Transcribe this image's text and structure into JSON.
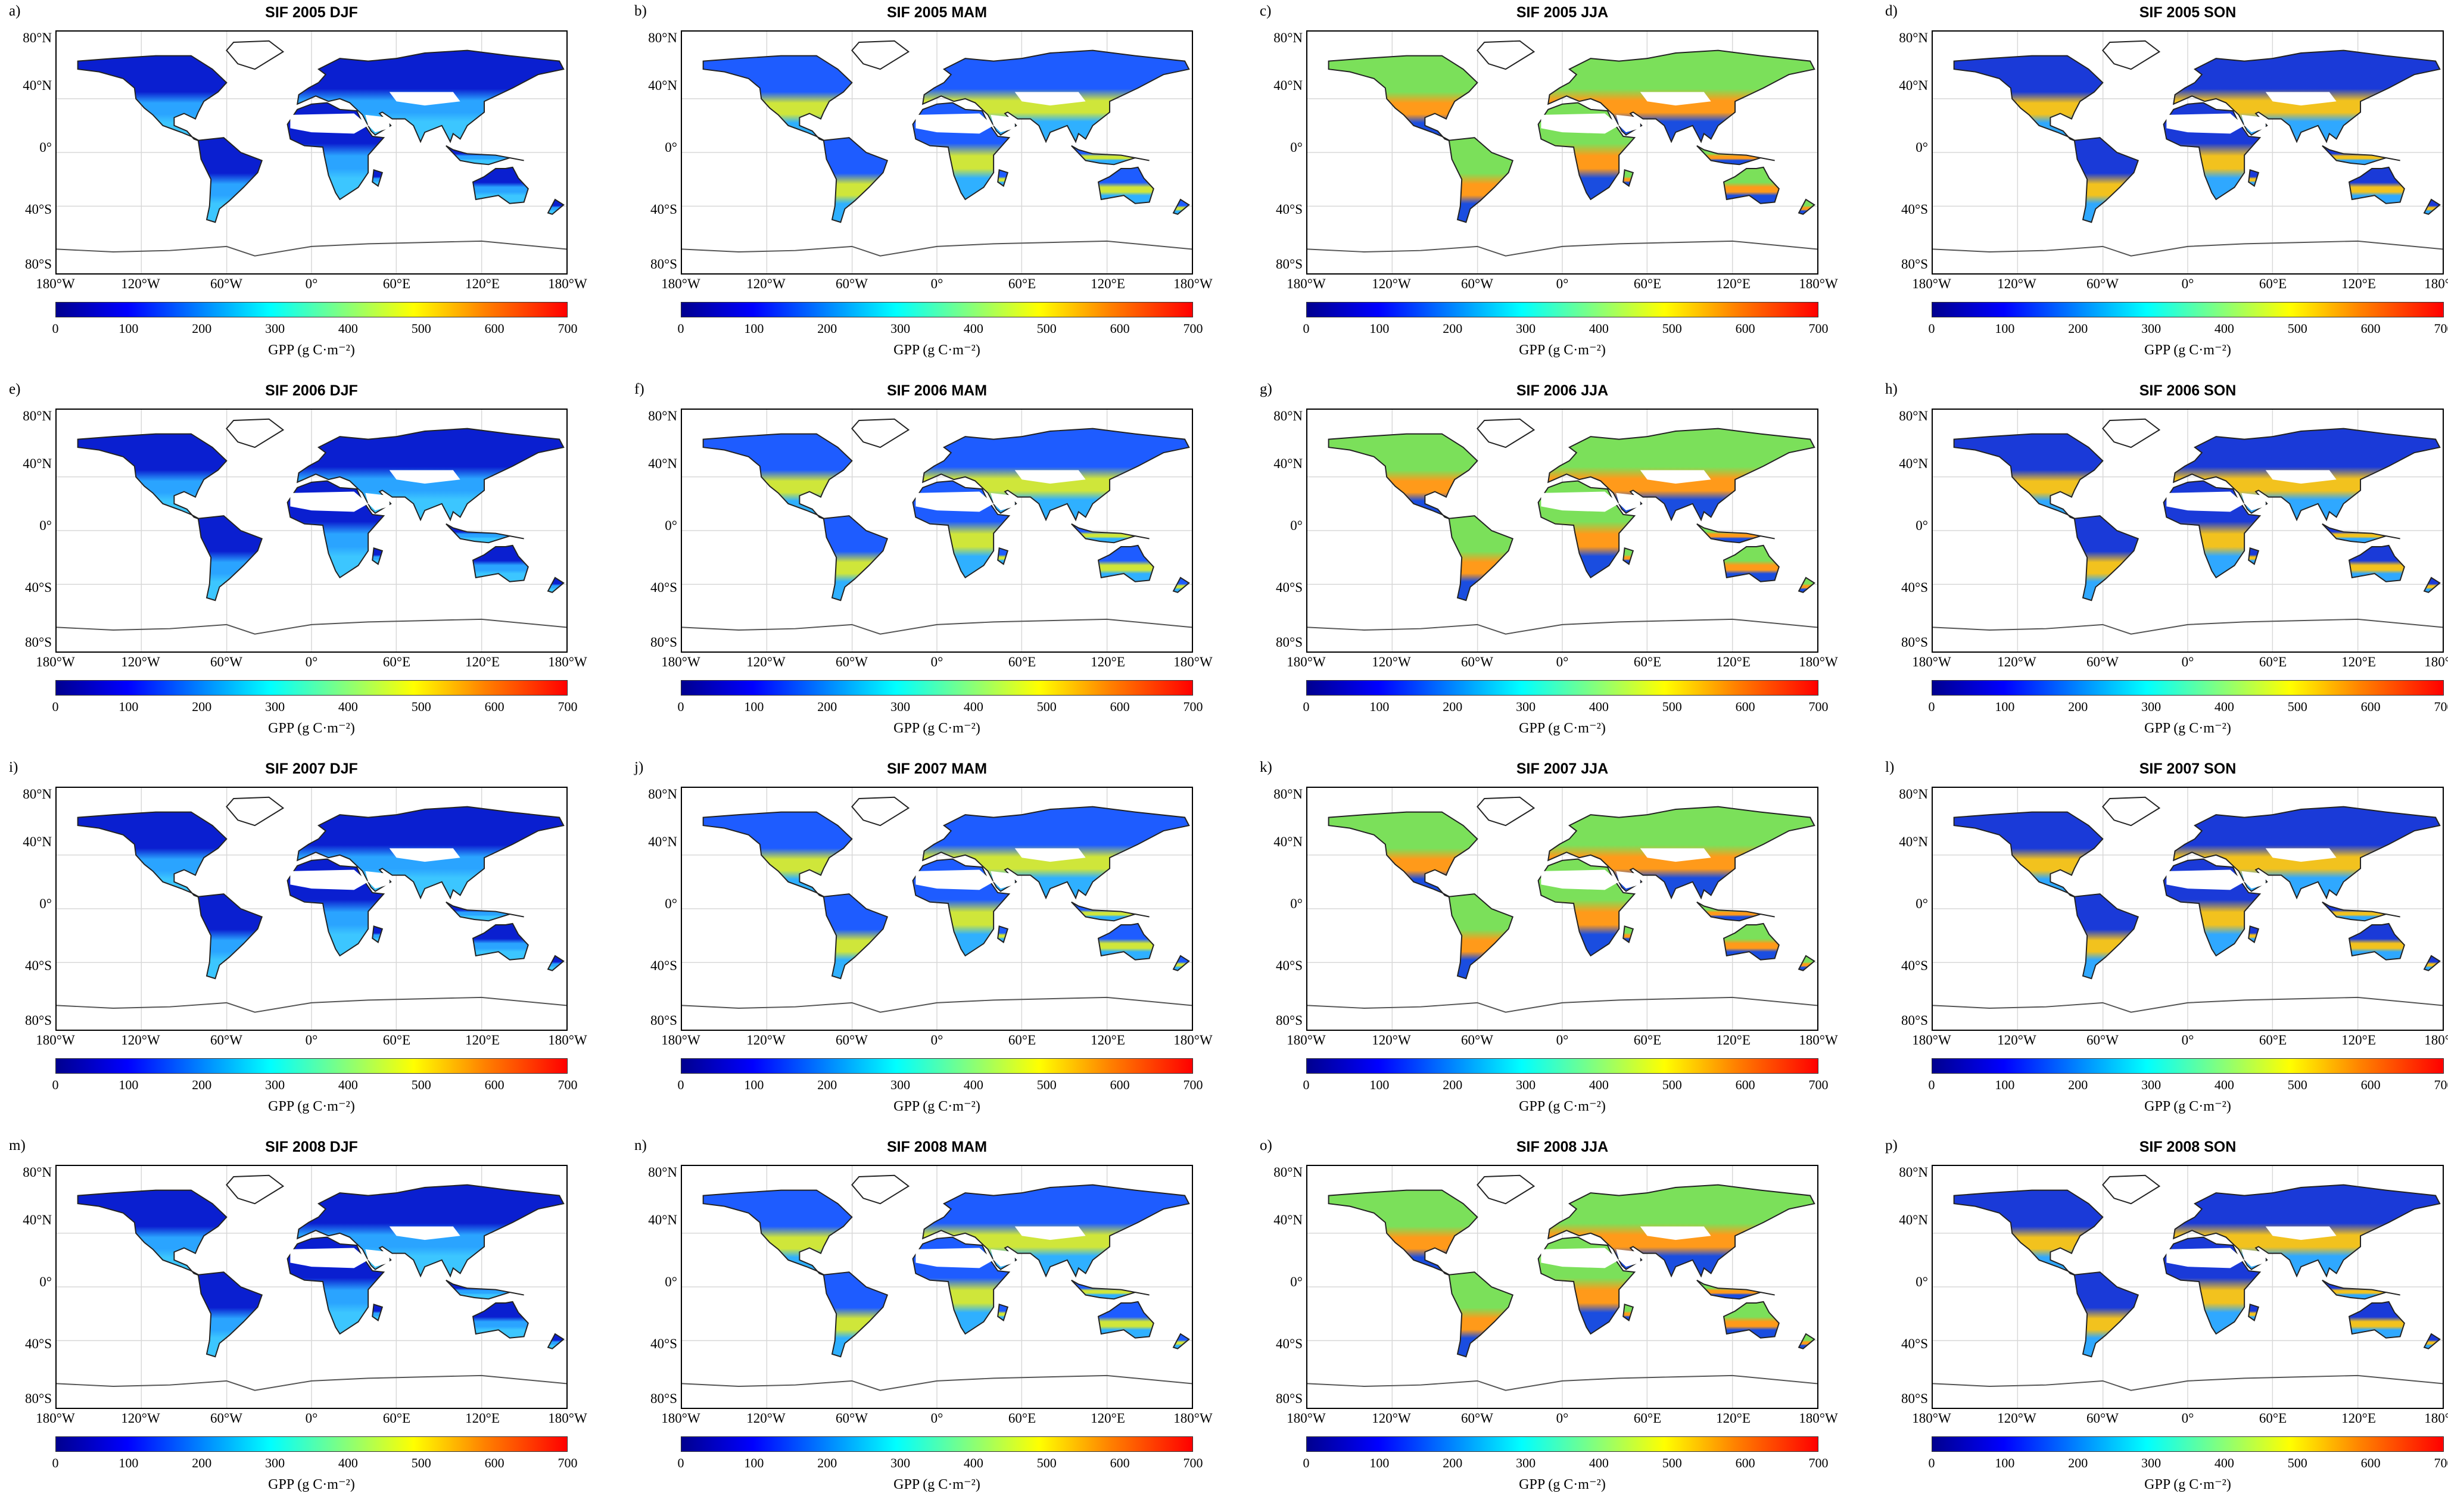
{
  "panels": [
    {
      "letter": "a)",
      "title": "SIF 2005 DJF",
      "season": "DJF"
    },
    {
      "letter": "b)",
      "title": "SIF 2005 MAM",
      "season": "MAM"
    },
    {
      "letter": "c)",
      "title": "SIF 2005 JJA",
      "season": "JJA"
    },
    {
      "letter": "d)",
      "title": "SIF 2005 SON",
      "season": "SON"
    },
    {
      "letter": "e)",
      "title": "SIF 2006 DJF",
      "season": "DJF"
    },
    {
      "letter": "f)",
      "title": "SIF 2006 MAM",
      "season": "MAM"
    },
    {
      "letter": "g)",
      "title": "SIF 2006 JJA",
      "season": "JJA"
    },
    {
      "letter": "h)",
      "title": "SIF 2006 SON",
      "season": "SON"
    },
    {
      "letter": "i)",
      "title": "SIF 2007 DJF",
      "season": "DJF"
    },
    {
      "letter": "j)",
      "title": "SIF 2007 MAM",
      "season": "MAM"
    },
    {
      "letter": "k)",
      "title": "SIF 2007 JJA",
      "season": "JJA"
    },
    {
      "letter": "l)",
      "title": "SIF 2007 SON",
      "season": "SON"
    },
    {
      "letter": "m)",
      "title": "SIF 2008 DJF",
      "season": "DJF"
    },
    {
      "letter": "n)",
      "title": "SIF 2008 MAM",
      "season": "MAM"
    },
    {
      "letter": "o)",
      "title": "SIF 2008 JJA",
      "season": "JJA"
    },
    {
      "letter": "p)",
      "title": "SIF 2008 SON",
      "season": "SON"
    }
  ],
  "lat_ticks": [
    "80°N",
    "40°N",
    "0°",
    "40°S",
    "80°S"
  ],
  "lon_ticks": [
    "180°W",
    "120°W",
    "60°W",
    "0°",
    "60°E",
    "120°E",
    "180°W"
  ],
  "colorbar": {
    "ticks": [
      "0",
      "100",
      "200",
      "300",
      "400",
      "500",
      "600",
      "700"
    ],
    "label": "GPP (g C·m⁻²)",
    "min": 0,
    "max": 700
  },
  "season_colors": {
    "DJF": {
      "north": "#0a1fd0",
      "tropic": "#2aa4ff",
      "south": "#3cc6ff"
    },
    "MAM": {
      "north": "#1e5cff",
      "tropic": "#cfe63a",
      "south": "#2fb0ff"
    },
    "JJA": {
      "north": "#7be05a",
      "tropic": "#ff9a1a",
      "south": "#1a4de0"
    },
    "SON": {
      "north": "#1a3ad8",
      "tropic": "#f2c21e",
      "south": "#2fa8ff"
    }
  }
}
